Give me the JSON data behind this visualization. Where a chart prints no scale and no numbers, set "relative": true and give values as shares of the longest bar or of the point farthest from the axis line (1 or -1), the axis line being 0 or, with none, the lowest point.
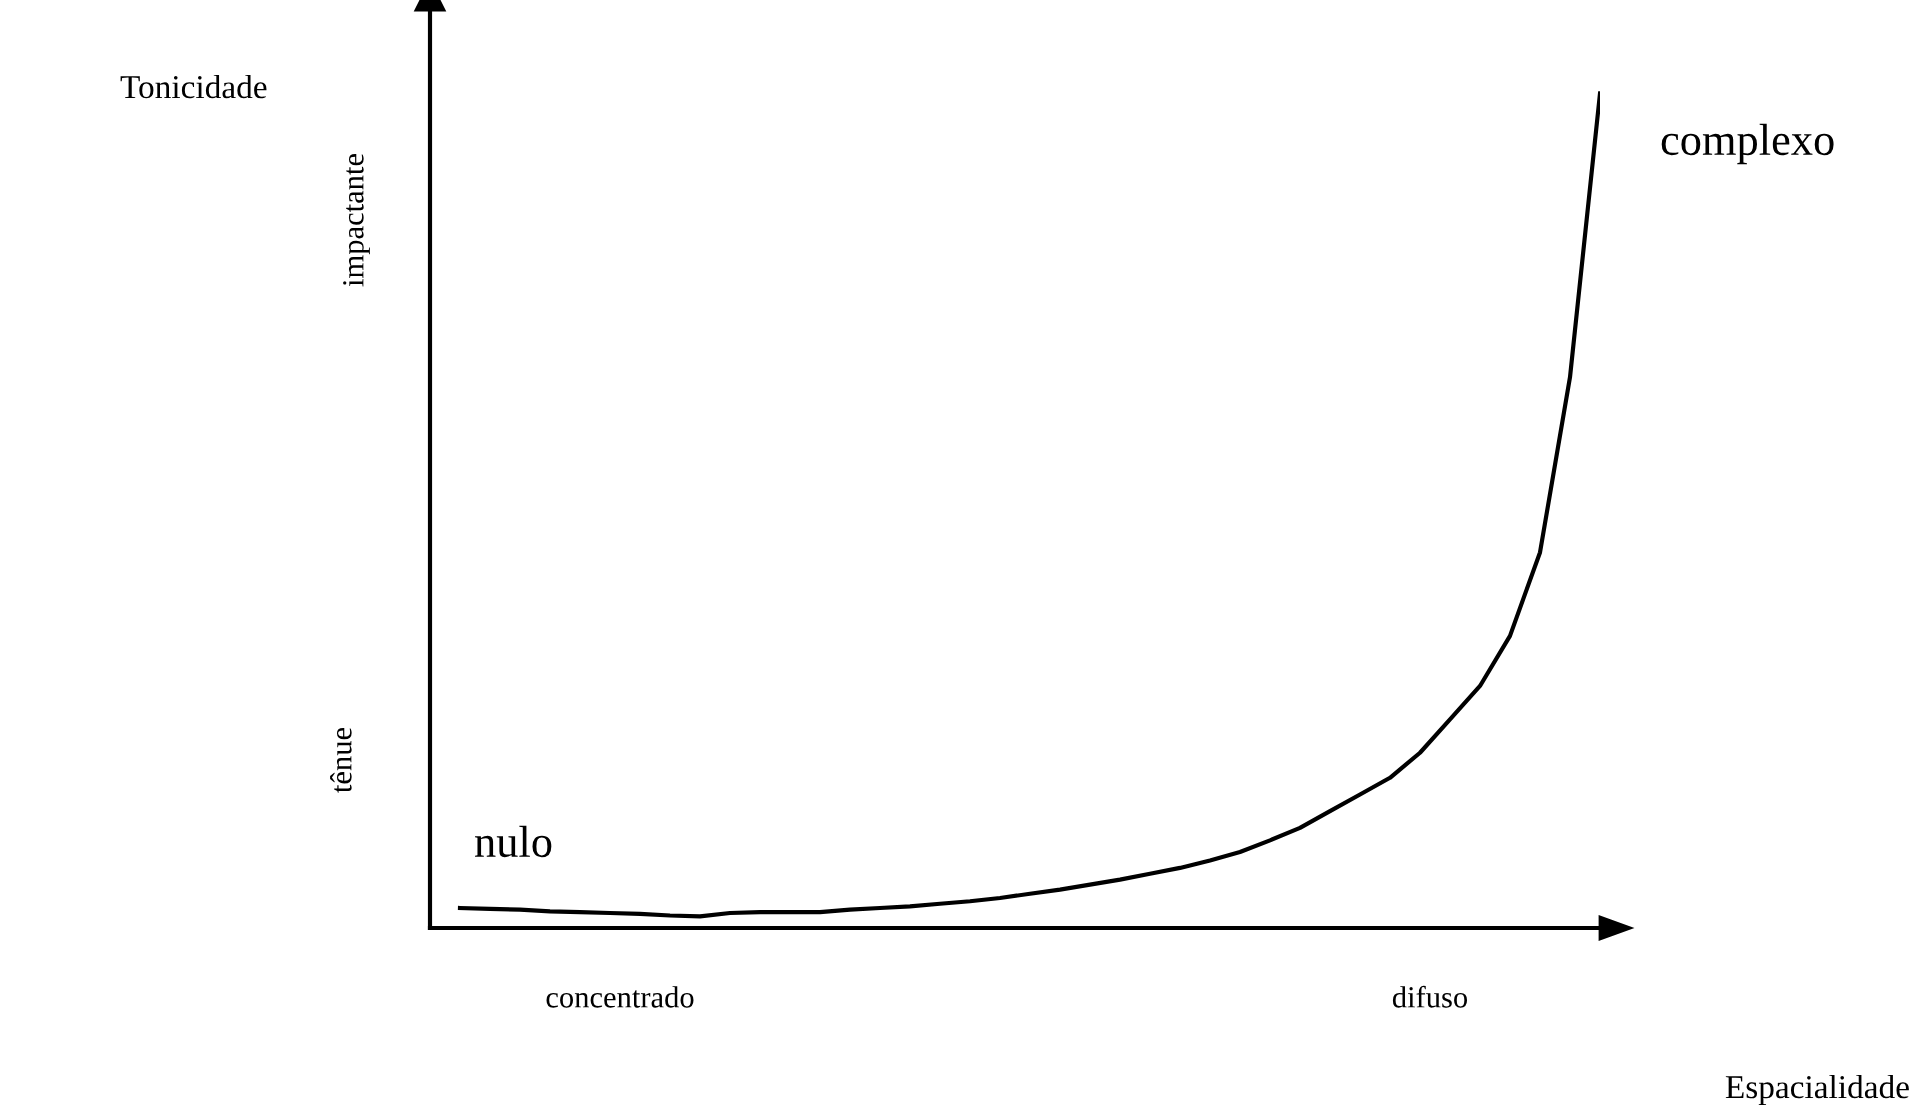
{
  "chart_data": {
    "type": "line",
    "relative": true,
    "color": "#000000",
    "categories": [
      null,
      null,
      null,
      null,
      null,
      null,
      null,
      null,
      null,
      null,
      null,
      null,
      null,
      null,
      null,
      null,
      null,
      null,
      null,
      null,
      null,
      null,
      null,
      null,
      null,
      null,
      null,
      null,
      null,
      null,
      null,
      null,
      null,
      null,
      null,
      null,
      null,
      null,
      null
    ],
    "values": [
      0.024,
      0.023,
      0.022,
      0.02,
      0.019,
      0.018,
      0.017,
      0.015,
      0.014,
      0.018,
      0.019,
      0.019,
      0.019,
      0.022,
      0.024,
      0.026,
      0.029,
      0.032,
      0.036,
      0.041,
      0.046,
      0.052,
      0.058,
      0.065,
      0.072,
      0.081,
      0.091,
      0.105,
      0.12,
      0.14,
      0.16,
      0.18,
      0.21,
      0.25,
      0.29,
      0.35,
      0.45,
      0.66,
      1.0
    ],
    "annotations": [
      "nulo",
      "complexo",
      "concentrado",
      "difuso",
      "tênue",
      "impactante",
      "Tonicidade",
      "Espacialidade"
    ],
    "grid": false,
    "legend": false
  }
}
